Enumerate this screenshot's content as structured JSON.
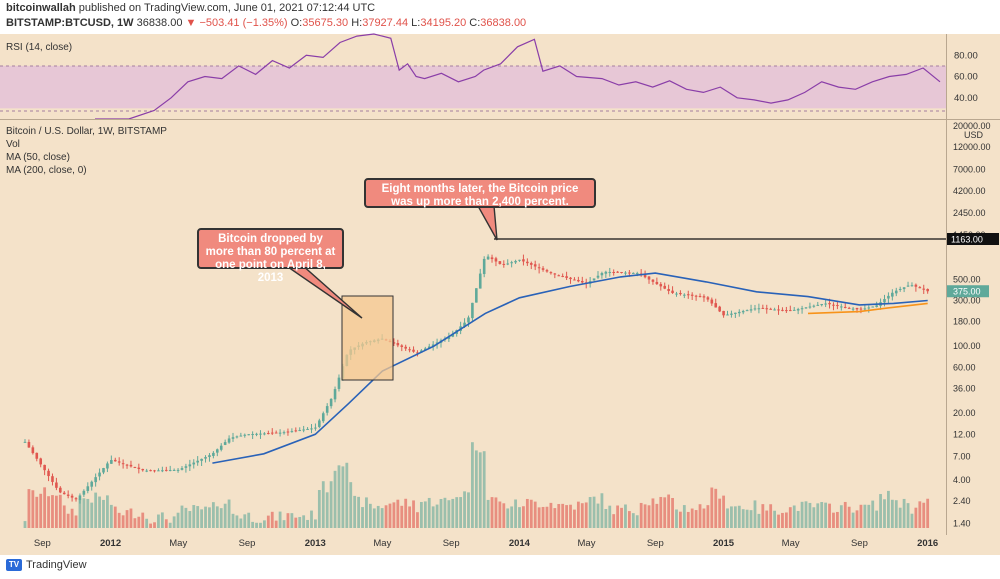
{
  "header": {
    "publish_line_user": "bitcoinwallah",
    "publish_line_rest": " published on TradingView.com, June 01, 2021 07:12:44 UTC",
    "symbol": "BITSTAMP:BTCUSD, 1W",
    "last": "36838.00",
    "change": "−503.41 (−1.35%)",
    "o_label": "O:",
    "o": "35675.30",
    "h_label": "H:",
    "h": "37927.44",
    "l_label": "L:",
    "l": "34195.20",
    "c_label": "C:",
    "c": "36838.00"
  },
  "rsi_panel": {
    "label": "RSI (14, close)"
  },
  "main_panel": {
    "title": "Bitcoin / U.S. Dollar, 1W, BITSTAMP",
    "indicators": [
      "Vol",
      "MA (50, close)",
      "MA (200, close, 0)"
    ]
  },
  "callouts": {
    "drop": "Bitcoin dropped by more than 80 percent at one point on April 8, 2013",
    "rise": "Eight months later, the Bitcoin price was up more than 2,400 percent."
  },
  "footer": {
    "brand": "TradingView"
  },
  "colors": {
    "up": "#5fa99a",
    "down": "#e0574f",
    "ma50": "#2962b8",
    "ma200": "#f7931a",
    "rsi": "#8a3ea8",
    "rsi_band": "#e7c7d6"
  },
  "chart_data": [
    {
      "type": "line",
      "title": "RSI (14, close)",
      "y_ticks": [
        "80.00",
        "60.00",
        "40.00"
      ],
      "band": [
        30,
        70
      ],
      "ylim": [
        20,
        100
      ],
      "x": [
        0,
        0.04,
        0.07,
        0.09,
        0.11,
        0.13,
        0.15,
        0.17,
        0.19,
        0.21,
        0.23,
        0.25,
        0.27,
        0.29,
        0.31,
        0.33,
        0.35,
        0.36,
        0.37,
        0.38,
        0.39,
        0.41,
        0.43,
        0.45,
        0.46,
        0.48,
        0.5,
        0.52,
        0.53,
        0.55,
        0.57,
        0.6,
        0.62,
        0.64,
        0.66,
        0.68,
        0.7,
        0.72,
        0.74,
        0.76,
        0.78,
        0.8,
        0.82,
        0.84,
        0.86,
        0.88,
        0.9,
        0.92,
        0.94,
        0.96,
        0.98,
        1
      ],
      "values": [
        10,
        15,
        28,
        40,
        55,
        60,
        58,
        70,
        62,
        75,
        68,
        80,
        78,
        92,
        98,
        100,
        96,
        66,
        72,
        60,
        58,
        63,
        55,
        60,
        66,
        72,
        88,
        95,
        65,
        70,
        60,
        58,
        52,
        55,
        50,
        56,
        48,
        45,
        50,
        40,
        38,
        35,
        38,
        45,
        55,
        50,
        48,
        55,
        60,
        62,
        68,
        55
      ]
    },
    {
      "type": "line",
      "title": "Bitcoin / U.S. Dollar, 1W, BITSTAMP",
      "x_ticks": [
        "Sep",
        "2012",
        "May",
        "Sep",
        "2013",
        "May",
        "Sep",
        "2014",
        "May",
        "Sep",
        "2015",
        "May",
        "Sep",
        "2016"
      ],
      "y_ticks": [
        "20000.00",
        "12000.00",
        "7000.00",
        "4200.00",
        "2450.00",
        "1450.00",
        "1163.00",
        "500.00",
        "375.00",
        "300.00",
        "180.00",
        "100.00",
        "60.00",
        "36.00",
        "20.00",
        "12.00",
        "7.00",
        "4.00",
        "2.40",
        "1.40"
      ],
      "y_unit": "USD",
      "last_price_label": "375.00",
      "level_line_label": "1163.00",
      "series": [
        {
          "name": "Bitcoin / U.S. Dollar",
          "x": [
            "2011-08",
            "2011-09",
            "2011-10",
            "2011-11",
            "2011-12",
            "2012-01",
            "2012-03",
            "2012-05",
            "2012-07",
            "2012-08",
            "2012-09",
            "2012-11",
            "2013-01",
            "2013-02",
            "2013-03",
            "2013-04",
            "2013-05",
            "2013-06",
            "2013-07",
            "2013-08",
            "2013-09",
            "2013-10",
            "2013-11",
            "2013-12",
            "2014-01",
            "2014-03",
            "2014-05",
            "2014-06",
            "2014-08",
            "2014-10",
            "2014-12",
            "2015-01",
            "2015-03",
            "2015-05",
            "2015-07",
            "2015-09",
            "2015-10",
            "2015-11",
            "2015-12",
            "2016-01"
          ],
          "values": [
            10,
            5.5,
            3,
            2.5,
            4,
            6.5,
            5,
            5.1,
            7.5,
            11,
            12,
            12.5,
            14,
            30,
            90,
            110,
            120,
            100,
            85,
            105,
            130,
            190,
            900,
            700,
            800,
            570,
            450,
            600,
            580,
            360,
            320,
            210,
            250,
            235,
            280,
            240,
            265,
            370,
            440,
            375
          ]
        },
        {
          "name": "MA (50, close)",
          "x": [
            "2012-07",
            "2012-10",
            "2013-01",
            "2013-03",
            "2013-05",
            "2013-08",
            "2013-11",
            "2014-01",
            "2014-04",
            "2014-07",
            "2014-09",
            "2014-12",
            "2015-03",
            "2015-06",
            "2015-09",
            "2015-11",
            "2016-01"
          ],
          "values": [
            6,
            7.5,
            12,
            25,
            55,
            100,
            220,
            320,
            420,
            530,
            580,
            470,
            370,
            330,
            270,
            280,
            300
          ]
        },
        {
          "name": "MA (200, close, 0)",
          "x": [
            "2015-06",
            "2015-09",
            "2015-11",
            "2016-01"
          ],
          "values": [
            220,
            230,
            255,
            280
          ]
        }
      ]
    }
  ]
}
